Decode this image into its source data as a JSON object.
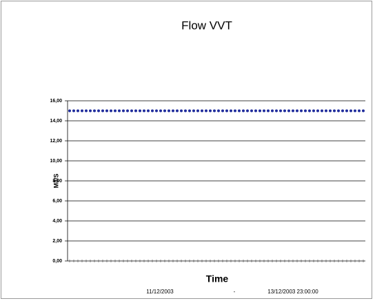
{
  "chart_data": {
    "type": "line",
    "title": "Flow VVT",
    "y_label": "M3/S",
    "x_label": "Time",
    "annotations": [
      "11/12/2003",
      "-",
      "13/12/2003 23:00:00"
    ],
    "categories": [
      null,
      null,
      null,
      null,
      null,
      null,
      null,
      null,
      null,
      null,
      null,
      null,
      null,
      null,
      null,
      null,
      null,
      null,
      null,
      null,
      null,
      null,
      null,
      null,
      null,
      null,
      null,
      null,
      null,
      null,
      null,
      null,
      null,
      null,
      null,
      null,
      null,
      null,
      null,
      null,
      null,
      null,
      null,
      null,
      null,
      null,
      null,
      null,
      null,
      null,
      null,
      null,
      null,
      null,
      null,
      null,
      null,
      null,
      null,
      null,
      null,
      null,
      null,
      null,
      null,
      null,
      null,
      null,
      null,
      null,
      null,
      null
    ],
    "series": [
      {
        "color": "#1f2c9c",
        "values": [
          15,
          15,
          15,
          15,
          15,
          15,
          15,
          15,
          15,
          15,
          15,
          15,
          15,
          15,
          15,
          15,
          15,
          15,
          15,
          15,
          15,
          15,
          15,
          15,
          15,
          15,
          15,
          15,
          15,
          15,
          15,
          15,
          15,
          15,
          15,
          15,
          15,
          15,
          15,
          15,
          15,
          15,
          15,
          15,
          15,
          15,
          15,
          15,
          15,
          15,
          15,
          15,
          15,
          15,
          15,
          15,
          15,
          15,
          15,
          15,
          15,
          15,
          15,
          15,
          15,
          15,
          15,
          15,
          15,
          15,
          15,
          15
        ]
      }
    ],
    "ylim": [
      0,
      16
    ],
    "yticks": [
      {
        "value": 0,
        "label": "0,00"
      },
      {
        "value": 2,
        "label": "2,00"
      },
      {
        "value": 4,
        "label": "4,00"
      },
      {
        "value": 6,
        "label": "6,00"
      },
      {
        "value": 8,
        "label": "8,00"
      },
      {
        "value": 10,
        "label": "10,00"
      },
      {
        "value": 12,
        "label": "12,00"
      },
      {
        "value": 14,
        "label": "14,00"
      },
      {
        "value": 16,
        "label": "16,00"
      }
    ],
    "grid": true
  }
}
